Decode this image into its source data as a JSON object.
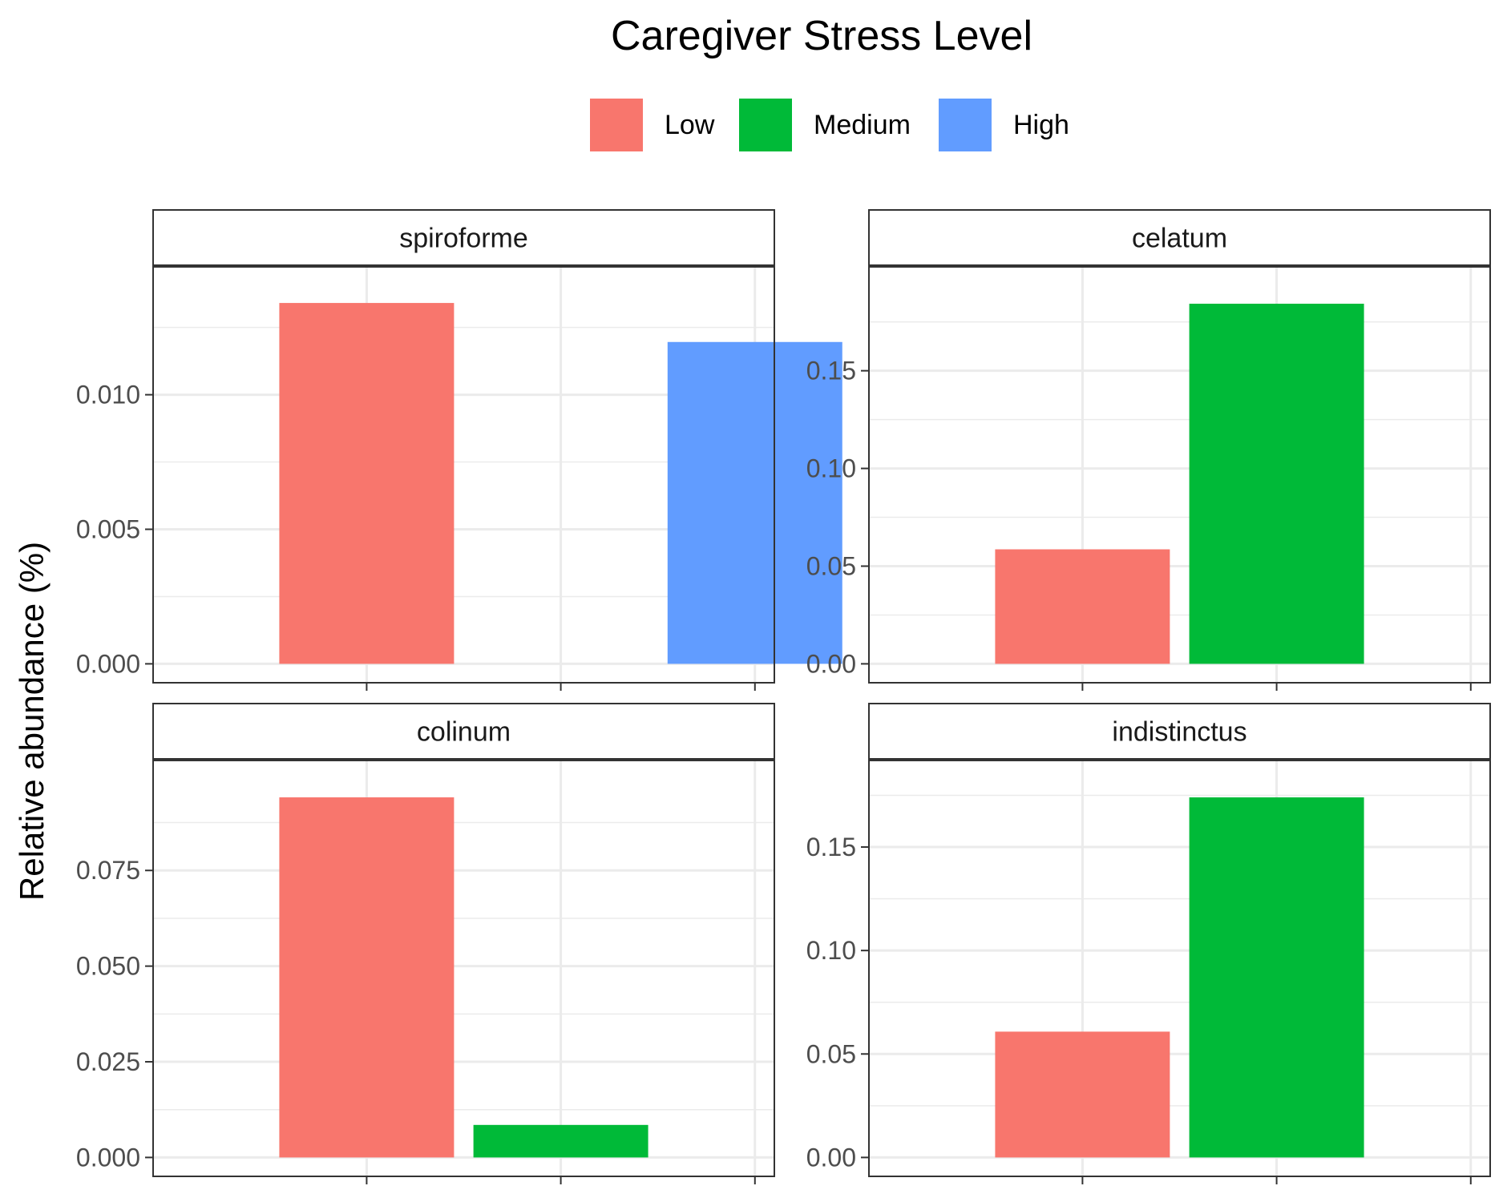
{
  "chart_data": {
    "type": "bar",
    "title": "Caregiver Stress Level",
    "ylabel": "Relative abundance (%)",
    "xlabel": "",
    "legend": {
      "position": "top",
      "entries": [
        {
          "name": "Low",
          "color": "#F8766D"
        },
        {
          "name": "Medium",
          "color": "#00BA38"
        },
        {
          "name": "High",
          "color": "#619CFF"
        }
      ]
    },
    "categories": [
      "Low",
      "Medium",
      "High"
    ],
    "grid": true,
    "panels": [
      {
        "name": "spiroforme",
        "ylim": [
          0,
          0.01405
        ],
        "yticks": [
          0,
          0.005,
          0.01
        ],
        "yticklabels": [
          "0.000",
          "0.005",
          "0.010"
        ],
        "values": [
          0.01341,
          null,
          0.01196
        ]
      },
      {
        "name": "celatum",
        "ylim": [
          0,
          0.1935
        ],
        "yticks": [
          0,
          0.05,
          0.1,
          0.15
        ],
        "yticklabels": [
          "0.00",
          "0.05",
          "0.10",
          "0.15"
        ],
        "values": [
          0.0586,
          0.1843,
          null
        ]
      },
      {
        "name": "colinum",
        "ylim": [
          0,
          0.0988
        ],
        "yticks": [
          0,
          0.025,
          0.05,
          0.075
        ],
        "yticklabels": [
          "0.000",
          "0.025",
          "0.050",
          "0.075"
        ],
        "values": [
          0.0941,
          0.0085,
          null
        ]
      },
      {
        "name": "indistinctus",
        "ylim": [
          0,
          0.1827
        ],
        "yticks": [
          0,
          0.05,
          0.1,
          0.15
        ],
        "yticklabels": [
          "0.00",
          "0.05",
          "0.10",
          "0.15"
        ],
        "values": [
          0.0608,
          0.174,
          null
        ]
      }
    ]
  }
}
